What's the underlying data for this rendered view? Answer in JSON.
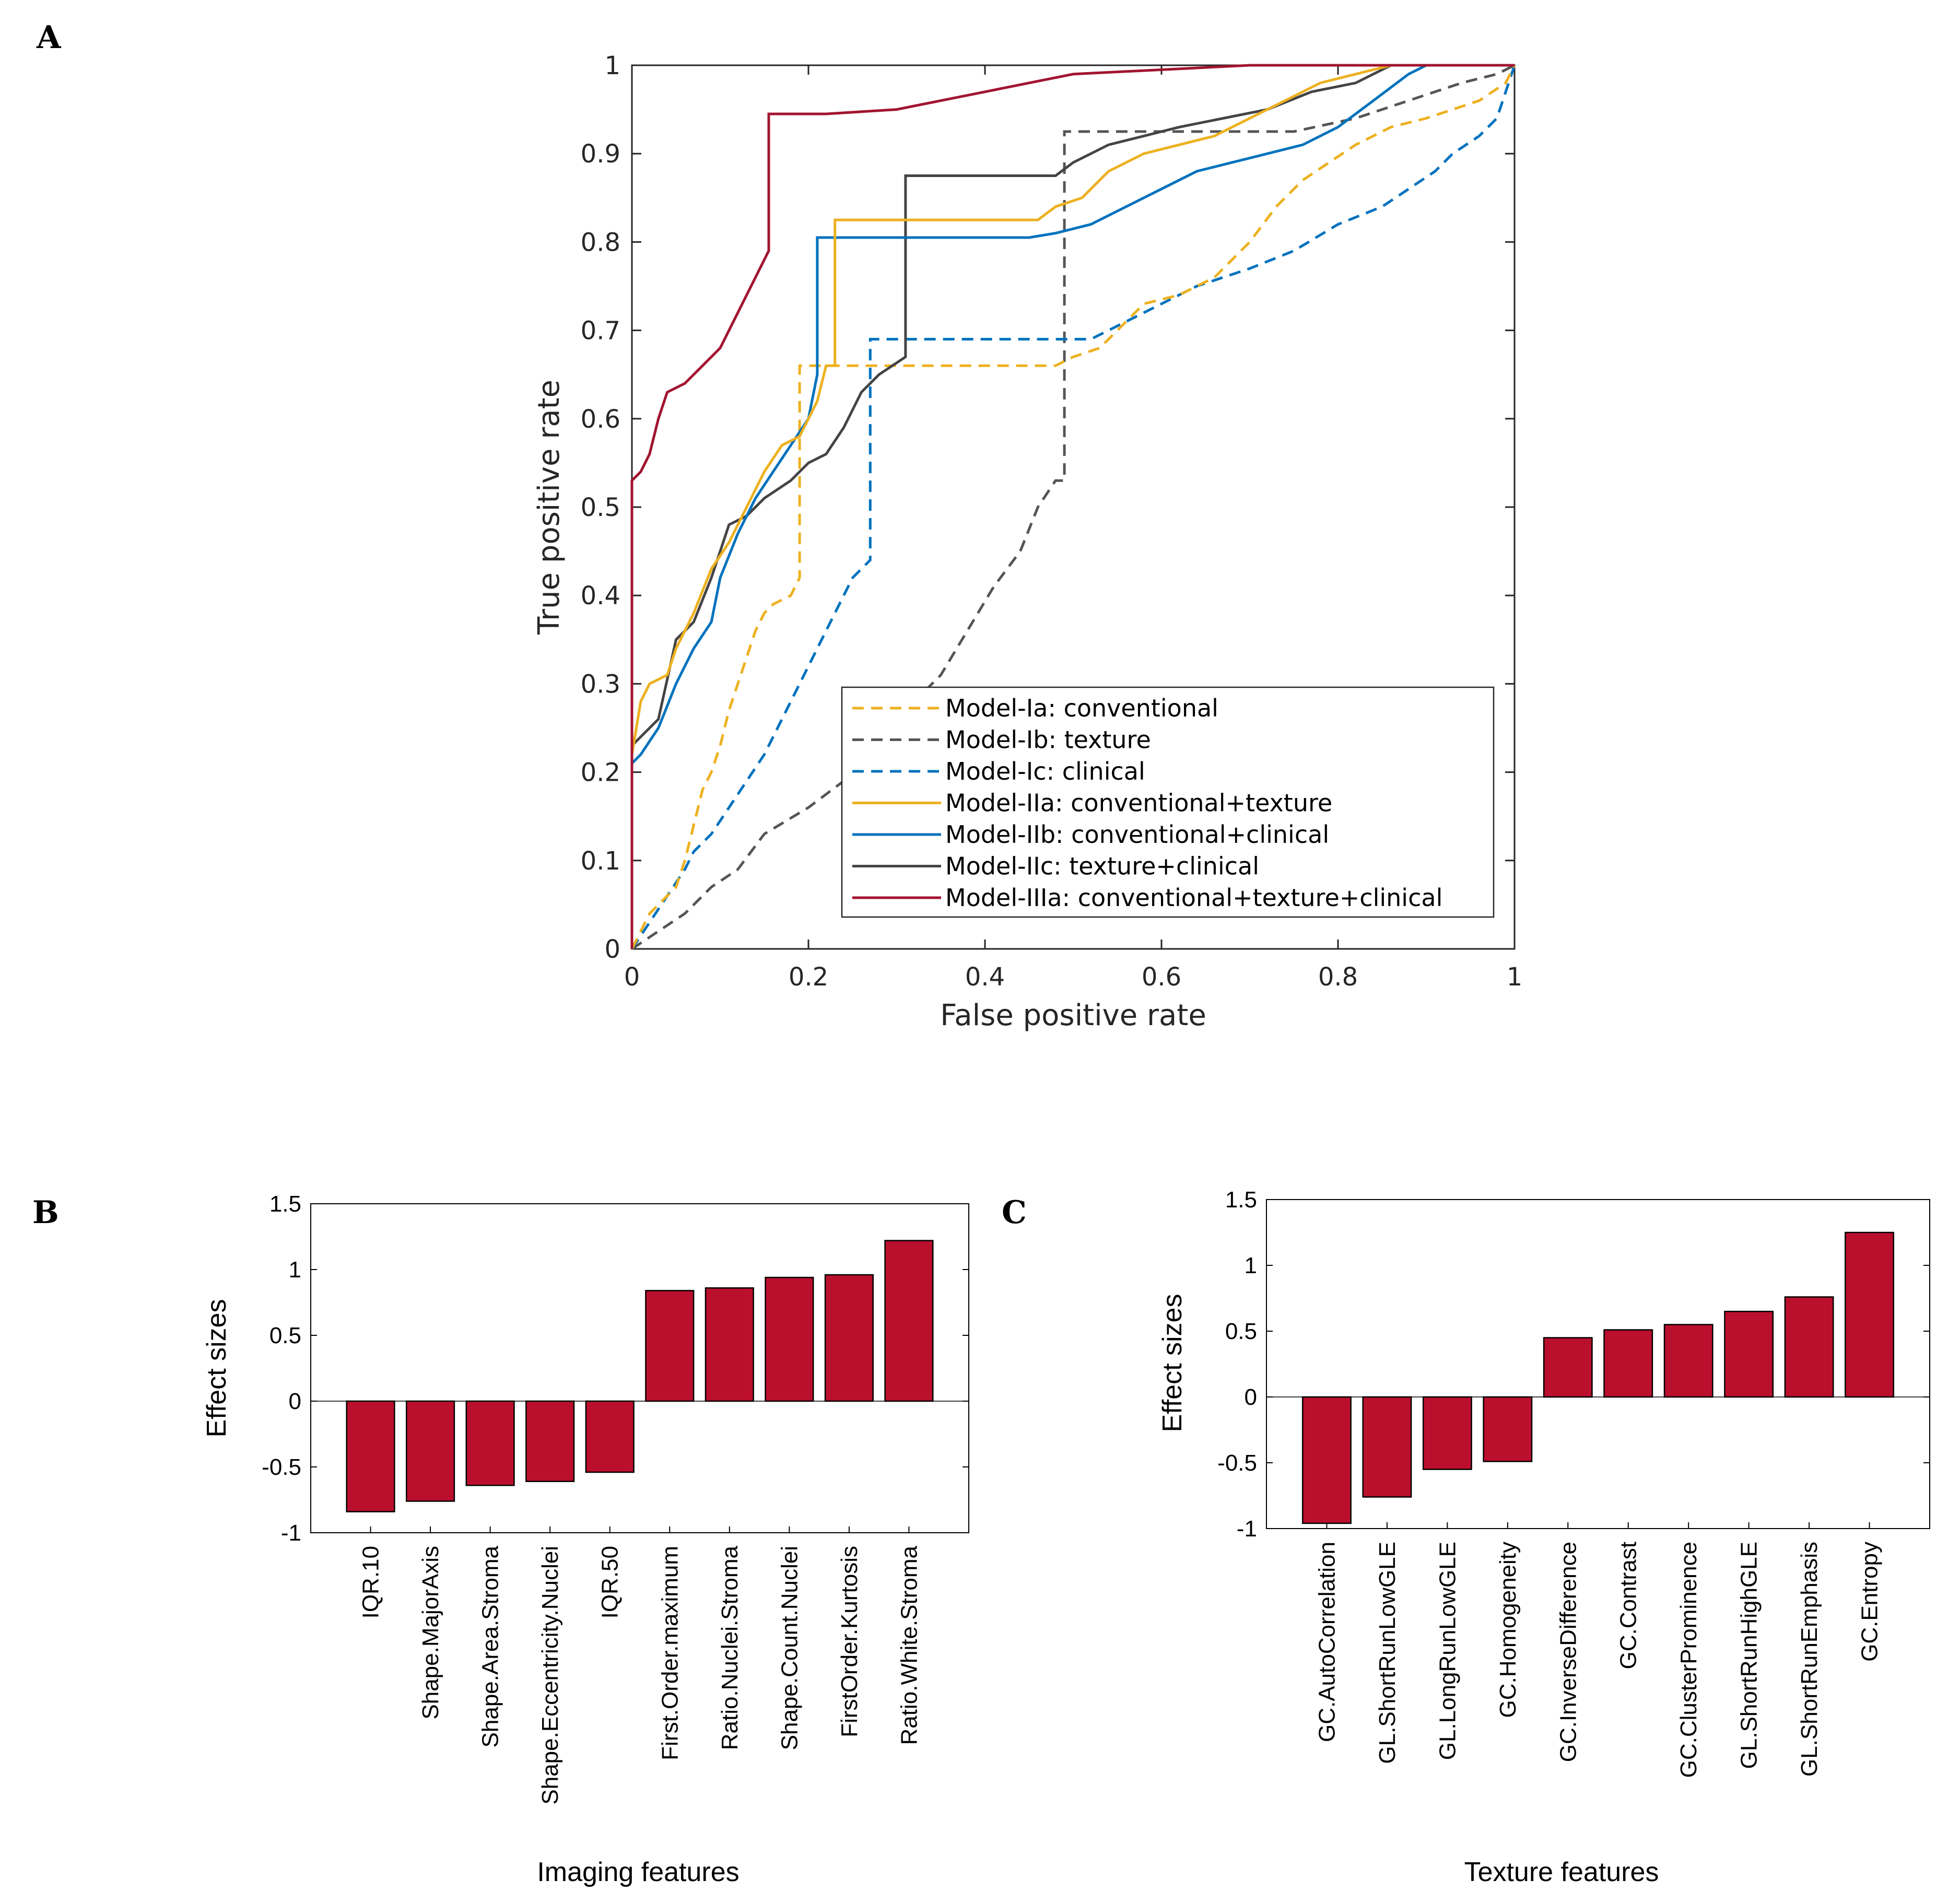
{
  "panels": {
    "a": "A",
    "b": "B",
    "c": "C"
  },
  "chart_data": [
    {
      "id": "A",
      "type": "line",
      "xlabel": "False positive rate",
      "ylabel": "True positive rate",
      "xlim": [
        0,
        1
      ],
      "ylim": [
        0,
        1
      ],
      "xticks": [
        "0",
        "0.2",
        "0.4",
        "0.6",
        "0.8",
        "1"
      ],
      "yticks": [
        "0",
        "0.1",
        "0.2",
        "0.3",
        "0.4",
        "0.5",
        "0.6",
        "0.7",
        "0.8",
        "0.9",
        "1"
      ],
      "legend_position": "bottom-right",
      "series": [
        {
          "name": "Model-Ia: conventional",
          "color": "#EDB120",
          "dash": true,
          "points": [
            [
              0,
              0
            ],
            [
              0.01,
              0.02
            ],
            [
              0.02,
              0.04
            ],
            [
              0.03,
              0.05
            ],
            [
              0.04,
              0.06
            ],
            [
              0.05,
              0.07
            ],
            [
              0.06,
              0.1
            ],
            [
              0.07,
              0.14
            ],
            [
              0.08,
              0.18
            ],
            [
              0.09,
              0.2
            ],
            [
              0.1,
              0.23
            ],
            [
              0.11,
              0.27
            ],
            [
              0.12,
              0.3
            ],
            [
              0.13,
              0.33
            ],
            [
              0.14,
              0.36
            ],
            [
              0.15,
              0.38
            ],
            [
              0.16,
              0.39
            ],
            [
              0.18,
              0.4
            ],
            [
              0.19,
              0.42
            ],
            [
              0.19,
              0.66
            ],
            [
              0.35,
              0.66
            ],
            [
              0.48,
              0.66
            ],
            [
              0.5,
              0.67
            ],
            [
              0.53,
              0.68
            ],
            [
              0.55,
              0.7
            ],
            [
              0.58,
              0.73
            ],
            [
              0.62,
              0.74
            ],
            [
              0.66,
              0.76
            ],
            [
              0.7,
              0.8
            ],
            [
              0.73,
              0.84
            ],
            [
              0.76,
              0.87
            ],
            [
              0.79,
              0.89
            ],
            [
              0.82,
              0.91
            ],
            [
              0.86,
              0.93
            ],
            [
              0.9,
              0.94
            ],
            [
              0.93,
              0.95
            ],
            [
              0.96,
              0.96
            ],
            [
              0.99,
              0.98
            ],
            [
              1,
              1
            ]
          ]
        },
        {
          "name": "Model-Ib: texture",
          "color": "#555555",
          "dash": true,
          "points": [
            [
              0,
              0
            ],
            [
              0.03,
              0.02
            ],
            [
              0.06,
              0.04
            ],
            [
              0.09,
              0.07
            ],
            [
              0.12,
              0.09
            ],
            [
              0.15,
              0.13
            ],
            [
              0.2,
              0.16
            ],
            [
              0.24,
              0.19
            ],
            [
              0.27,
              0.22
            ],
            [
              0.31,
              0.27
            ],
            [
              0.35,
              0.31
            ],
            [
              0.38,
              0.36
            ],
            [
              0.41,
              0.41
            ],
            [
              0.44,
              0.45
            ],
            [
              0.46,
              0.5
            ],
            [
              0.48,
              0.53
            ],
            [
              0.49,
              0.53
            ],
            [
              0.49,
              0.925
            ],
            [
              0.62,
              0.925
            ],
            [
              0.75,
              0.925
            ],
            [
              0.82,
              0.94
            ],
            [
              0.88,
              0.96
            ],
            [
              0.94,
              0.98
            ],
            [
              0.98,
              0.99
            ],
            [
              1,
              1
            ]
          ]
        },
        {
          "name": "Model-Ic: clinical",
          "color": "#0072BD",
          "dash": true,
          "points": [
            [
              0,
              0
            ],
            [
              0.02,
              0.03
            ],
            [
              0.04,
              0.06
            ],
            [
              0.06,
              0.09
            ],
            [
              0.07,
              0.11
            ],
            [
              0.09,
              0.13
            ],
            [
              0.11,
              0.16
            ],
            [
              0.13,
              0.19
            ],
            [
              0.15,
              0.22
            ],
            [
              0.17,
              0.26
            ],
            [
              0.19,
              0.3
            ],
            [
              0.21,
              0.34
            ],
            [
              0.23,
              0.38
            ],
            [
              0.25,
              0.42
            ],
            [
              0.27,
              0.44
            ],
            [
              0.27,
              0.69
            ],
            [
              0.35,
              0.69
            ],
            [
              0.48,
              0.69
            ],
            [
              0.52,
              0.69
            ],
            [
              0.56,
              0.71
            ],
            [
              0.6,
              0.73
            ],
            [
              0.64,
              0.75
            ],
            [
              0.7,
              0.77
            ],
            [
              0.75,
              0.79
            ],
            [
              0.8,
              0.82
            ],
            [
              0.85,
              0.84
            ],
            [
              0.88,
              0.86
            ],
            [
              0.91,
              0.88
            ],
            [
              0.93,
              0.9
            ],
            [
              0.96,
              0.92
            ],
            [
              0.98,
              0.94
            ],
            [
              1,
              1
            ]
          ]
        },
        {
          "name": "Model-IIa: conventional+texture",
          "color": "#EDB120",
          "dash": false,
          "points": [
            [
              0,
              0
            ],
            [
              0,
              0.22
            ],
            [
              0.01,
              0.28
            ],
            [
              0.02,
              0.3
            ],
            [
              0.04,
              0.31
            ],
            [
              0.05,
              0.34
            ],
            [
              0.07,
              0.38
            ],
            [
              0.09,
              0.43
            ],
            [
              0.11,
              0.46
            ],
            [
              0.13,
              0.5
            ],
            [
              0.15,
              0.54
            ],
            [
              0.17,
              0.57
            ],
            [
              0.19,
              0.58
            ],
            [
              0.21,
              0.62
            ],
            [
              0.22,
              0.66
            ],
            [
              0.23,
              0.66
            ],
            [
              0.23,
              0.825
            ],
            [
              0.32,
              0.825
            ],
            [
              0.46,
              0.825
            ],
            [
              0.48,
              0.84
            ],
            [
              0.51,
              0.85
            ],
            [
              0.54,
              0.88
            ],
            [
              0.58,
              0.9
            ],
            [
              0.62,
              0.91
            ],
            [
              0.66,
              0.92
            ],
            [
              0.7,
              0.94
            ],
            [
              0.74,
              0.96
            ],
            [
              0.78,
              0.98
            ],
            [
              0.82,
              0.99
            ],
            [
              0.86,
              1
            ],
            [
              1,
              1
            ]
          ]
        },
        {
          "name": "Model-IIb: conventional+clinical",
          "color": "#0072BD",
          "dash": false,
          "points": [
            [
              0,
              0
            ],
            [
              0,
              0.21
            ],
            [
              0.01,
              0.22
            ],
            [
              0.03,
              0.25
            ],
            [
              0.05,
              0.3
            ],
            [
              0.07,
              0.34
            ],
            [
              0.09,
              0.37
            ],
            [
              0.1,
              0.42
            ],
            [
              0.12,
              0.47
            ],
            [
              0.14,
              0.51
            ],
            [
              0.16,
              0.54
            ],
            [
              0.18,
              0.57
            ],
            [
              0.2,
              0.6
            ],
            [
              0.21,
              0.65
            ],
            [
              0.21,
              0.805
            ],
            [
              0.3,
              0.805
            ],
            [
              0.45,
              0.805
            ],
            [
              0.48,
              0.81
            ],
            [
              0.52,
              0.82
            ],
            [
              0.56,
              0.84
            ],
            [
              0.6,
              0.86
            ],
            [
              0.64,
              0.88
            ],
            [
              0.68,
              0.89
            ],
            [
              0.72,
              0.9
            ],
            [
              0.76,
              0.91
            ],
            [
              0.8,
              0.93
            ],
            [
              0.84,
              0.96
            ],
            [
              0.88,
              0.99
            ],
            [
              0.9,
              1
            ],
            [
              1,
              1
            ]
          ]
        },
        {
          "name": "Model-IIc: texture+clinical",
          "color": "#444444",
          "dash": false,
          "points": [
            [
              0,
              0
            ],
            [
              0,
              0.23
            ],
            [
              0.01,
              0.24
            ],
            [
              0.03,
              0.26
            ],
            [
              0.05,
              0.35
            ],
            [
              0.07,
              0.37
            ],
            [
              0.09,
              0.42
            ],
            [
              0.11,
              0.48
            ],
            [
              0.13,
              0.49
            ],
            [
              0.15,
              0.51
            ],
            [
              0.18,
              0.53
            ],
            [
              0.2,
              0.55
            ],
            [
              0.22,
              0.56
            ],
            [
              0.24,
              0.59
            ],
            [
              0.26,
              0.63
            ],
            [
              0.28,
              0.65
            ],
            [
              0.31,
              0.67
            ],
            [
              0.31,
              0.875
            ],
            [
              0.4,
              0.875
            ],
            [
              0.48,
              0.875
            ],
            [
              0.5,
              0.89
            ],
            [
              0.54,
              0.91
            ],
            [
              0.58,
              0.92
            ],
            [
              0.62,
              0.93
            ],
            [
              0.67,
              0.94
            ],
            [
              0.72,
              0.95
            ],
            [
              0.77,
              0.97
            ],
            [
              0.82,
              0.98
            ],
            [
              0.86,
              1
            ],
            [
              1,
              1
            ]
          ]
        },
        {
          "name": "Model-IIIa: conventional+texture+clinical",
          "color": "#A2142F",
          "dash": false,
          "points": [
            [
              0,
              0
            ],
            [
              0,
              0.53
            ],
            [
              0.01,
              0.54
            ],
            [
              0.02,
              0.56
            ],
            [
              0.03,
              0.6
            ],
            [
              0.04,
              0.63
            ],
            [
              0.06,
              0.64
            ],
            [
              0.08,
              0.66
            ],
            [
              0.1,
              0.68
            ],
            [
              0.11,
              0.7
            ],
            [
              0.12,
              0.72
            ],
            [
              0.13,
              0.74
            ],
            [
              0.14,
              0.76
            ],
            [
              0.15,
              0.78
            ],
            [
              0.155,
              0.79
            ],
            [
              0.155,
              0.945
            ],
            [
              0.22,
              0.945
            ],
            [
              0.3,
              0.95
            ],
            [
              0.35,
              0.96
            ],
            [
              0.4,
              0.97
            ],
            [
              0.45,
              0.98
            ],
            [
              0.5,
              0.99
            ],
            [
              0.6,
              0.995
            ],
            [
              0.7,
              1
            ],
            [
              1,
              1
            ]
          ]
        }
      ]
    },
    {
      "id": "B",
      "type": "bar",
      "xlabel": "Imaging features",
      "ylabel": "Effect sizes",
      "ylim": [
        -1,
        1.5
      ],
      "yticks": [
        "-1",
        "-0.5",
        "0",
        "0.5",
        "1",
        "1.5"
      ],
      "bar_color": "#BB0F2E",
      "categories": [
        "IQR.10",
        "Shape.MajorAxis",
        "Shape.Area.Stroma",
        "Shape.Eccentricity.Nuclei",
        "IQR.50",
        "First.Order.maximum",
        "Ratio.Nuclei.Stroma",
        "Shape.Count.Nuclei",
        "FirstOrder.Kurtosis",
        "Ratio.White.Stroma"
      ],
      "values": [
        -0.84,
        -0.76,
        -0.64,
        -0.61,
        -0.54,
        0.84,
        0.86,
        0.94,
        0.96,
        1.22
      ]
    },
    {
      "id": "C",
      "type": "bar",
      "xlabel": "Texture features",
      "ylabel": "Effect sizes",
      "ylim": [
        -1,
        1.5
      ],
      "yticks": [
        "-1",
        "-0.5",
        "0",
        "0.5",
        "1",
        "1.5"
      ],
      "bar_color": "#BB0F2E",
      "categories": [
        "GC.AutoCorrelation",
        "GL.ShortRunLowGLE",
        "GL.LongRunLowGLE",
        "GC.Homogeneity",
        "GC.InverseDifference",
        "GC.Contrast",
        "GC.ClusterProminence",
        "GL.ShortRunHighGLE",
        "GL.ShortRunEmphasis",
        "GC.Entropy"
      ],
      "values": [
        -0.96,
        -0.76,
        -0.55,
        -0.49,
        0.45,
        0.51,
        0.55,
        0.65,
        0.76,
        1.25
      ]
    }
  ]
}
